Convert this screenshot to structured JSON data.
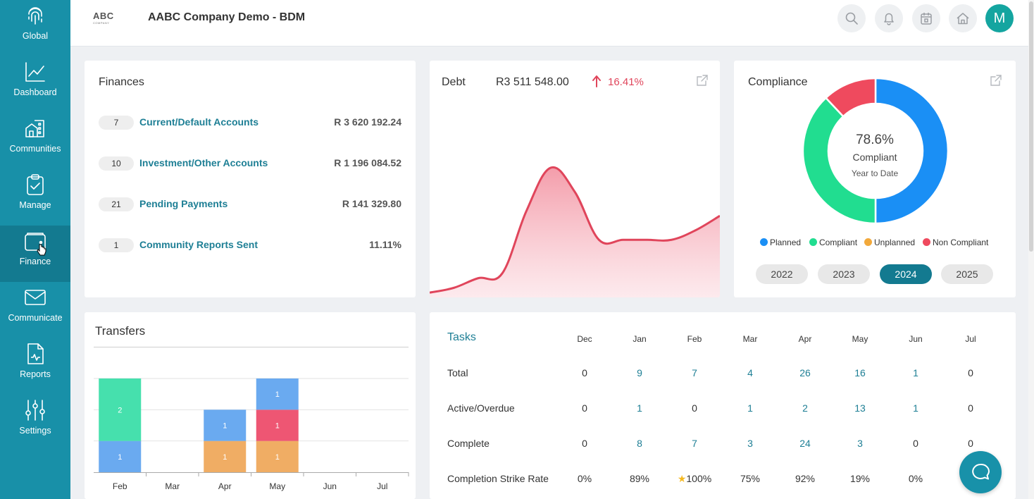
{
  "sidebar": {
    "items": [
      {
        "label": "Global",
        "icon": "fingerprint-icon"
      },
      {
        "label": "Dashboard",
        "icon": "line-chart-icon"
      },
      {
        "label": "Communities",
        "icon": "buildings-icon"
      },
      {
        "label": "Manage",
        "icon": "clipboard-check-icon"
      },
      {
        "label": "Finance",
        "icon": "wallet-icon",
        "active": true
      },
      {
        "label": "Communicate",
        "icon": "envelope-icon"
      },
      {
        "label": "Reports",
        "icon": "report-icon"
      },
      {
        "label": "Settings",
        "icon": "sliders-icon"
      }
    ]
  },
  "header": {
    "logo_text": "ABC",
    "logo_subtext": "COMPANY",
    "company_name": "AABC Company Demo - BDM",
    "avatar_initial": "M",
    "icons": [
      "search-icon",
      "bell-icon",
      "calendar-icon",
      "home-icon"
    ]
  },
  "finances": {
    "title": "Finances",
    "rows": [
      {
        "count": "7",
        "label": "Current/Default Accounts",
        "amount": "R 3 620 192.24"
      },
      {
        "count": "10",
        "label": "Investment/Other Accounts",
        "amount": "R 1 196 084.52"
      },
      {
        "count": "21",
        "label": "Pending Payments",
        "amount": "R 141 329.80"
      },
      {
        "count": "1",
        "label": "Community Reports Sent",
        "amount": "11.11%"
      }
    ]
  },
  "debt": {
    "label": "Debt",
    "value": "R3 511 548.00",
    "change": "16.41%",
    "trend": "up",
    "color": "#e0455b"
  },
  "compliance": {
    "title": "Compliance",
    "percent": "78.6%",
    "subtitle": "Compliant",
    "period": "Year to Date",
    "legend": [
      {
        "label": "Planned",
        "color": "#1a8ff5"
      },
      {
        "label": "Compliant",
        "color": "#21dd90"
      },
      {
        "label": "Unplanned",
        "color": "#f2a93b"
      },
      {
        "label": "Non Compliant",
        "color": "#ef4a5e"
      }
    ],
    "years": [
      "2022",
      "2023",
      "2024",
      "2025"
    ],
    "active_year": "2024"
  },
  "transfers": {
    "title": "Transfers"
  },
  "chart_data": [
    {
      "type": "area",
      "title": "Debt",
      "x": [
        0,
        1,
        2,
        3,
        4,
        5,
        6,
        7,
        8,
        9,
        10,
        11,
        12
      ],
      "values": [
        0.5,
        1.0,
        2.0,
        2.5,
        9.0,
        13.5,
        11.0,
        6.0,
        6.0,
        6.0,
        6.0,
        7.0,
        8.5
      ],
      "ylim": [
        0,
        16
      ],
      "grid": false,
      "color": "#e0455b"
    },
    {
      "type": "pie",
      "title": "Compliance",
      "categories": [
        "Planned",
        "Compliant",
        "Unplanned",
        "Non Compliant"
      ],
      "values": [
        50,
        38,
        0,
        12
      ],
      "donut": true
    },
    {
      "type": "bar",
      "stacked": true,
      "title": "Transfers",
      "categories": [
        "Feb",
        "Mar",
        "Apr",
        "May",
        "Jun",
        "Jul"
      ],
      "ylim": [
        0,
        3
      ],
      "segments": [
        [
          {
            "value": 1,
            "color": "#6aaaf0"
          },
          {
            "value": 2,
            "color": "#46e0ad"
          }
        ],
        [],
        [
          {
            "value": 1,
            "color": "#f0ad64"
          },
          {
            "value": 1,
            "color": "#6aaaf0"
          }
        ],
        [
          {
            "value": 1,
            "color": "#f0ad64"
          },
          {
            "value": 1,
            "color": "#ee5673"
          },
          {
            "value": 1,
            "color": "#6aaaf0"
          }
        ],
        [],
        []
      ]
    },
    {
      "type": "table",
      "title": "Tasks",
      "columns": [
        "Dec",
        "Jan",
        "Feb",
        "Mar",
        "Apr",
        "May",
        "Jun",
        "Jul"
      ],
      "rows": [
        {
          "label": "Total",
          "values": [
            "0",
            "9",
            "7",
            "4",
            "26",
            "16",
            "1",
            "0"
          ]
        },
        {
          "label": "Active/Overdue",
          "values": [
            "0",
            "1",
            "0",
            "1",
            "2",
            "13",
            "1",
            "0"
          ]
        },
        {
          "label": "Complete",
          "values": [
            "0",
            "8",
            "7",
            "3",
            "24",
            "3",
            "0",
            "0"
          ]
        },
        {
          "label": "Completion Strike Rate",
          "values": [
            "0%",
            "89%",
            "100%",
            "75%",
            "92%",
            "19%",
            "0%",
            ""
          ],
          "star_index": 2
        }
      ]
    }
  ]
}
